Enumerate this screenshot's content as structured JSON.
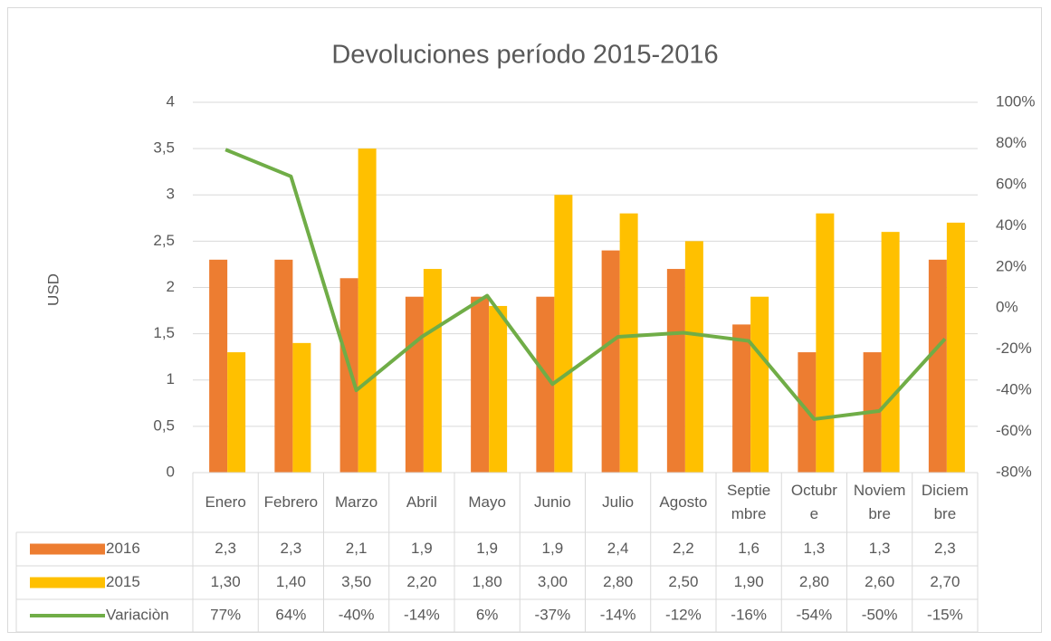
{
  "chart_data": {
    "type": "bar",
    "title": "Devoluciones período 2015-2016",
    "y_label": "USD",
    "categories": [
      "Enero",
      "Febrero",
      "Marzo",
      "Abril",
      "Mayo",
      "Junio",
      "Julio",
      "Agosto",
      "Septiembre",
      "Octubre",
      "Noviembre",
      "Diciembre"
    ],
    "series": [
      {
        "name": "2016",
        "color": "#ed7d31",
        "type": "bar",
        "values": [
          2.3,
          2.3,
          2.1,
          1.9,
          1.9,
          1.9,
          2.4,
          2.2,
          1.6,
          1.3,
          1.3,
          2.3
        ],
        "value_labels": [
          "2,3",
          "2,3",
          "2,1",
          "1,9",
          "1,9",
          "1,9",
          "2,4",
          "2,2",
          "1,6",
          "1,3",
          "1,3",
          "2,3"
        ]
      },
      {
        "name": "2015",
        "color": "#ffc000",
        "type": "bar",
        "values": [
          1.3,
          1.4,
          3.5,
          2.2,
          1.8,
          3.0,
          2.8,
          2.5,
          1.9,
          2.8,
          2.6,
          2.7
        ],
        "value_labels": [
          "1,30",
          "1,40",
          "3,50",
          "2,20",
          "1,80",
          "3,00",
          "2,80",
          "2,50",
          "1,90",
          "2,80",
          "2,60",
          "2,70"
        ]
      },
      {
        "name": "Variaciòn",
        "color": "#70ad47",
        "type": "line",
        "axis": "y2",
        "values": [
          77,
          64,
          -40,
          -14,
          6,
          -37,
          -14,
          -12,
          -16,
          -54,
          -50,
          -15
        ],
        "value_labels": [
          "77%",
          "64%",
          "-40%",
          "-14%",
          "6%",
          "-37%",
          "-14%",
          "-12%",
          "-16%",
          "-54%",
          "-50%",
          "-15%"
        ]
      }
    ],
    "ylim": [
      0,
      4
    ],
    "yticks": [
      0,
      {
        "value": 0.5,
        "label": "0,5"
      },
      1,
      {
        "value": 1.5,
        "label": "1,5"
      },
      2,
      {
        "value": 2.5,
        "label": "2,5"
      },
      3,
      {
        "value": 3.5,
        "label": "3,5"
      },
      4
    ],
    "y2lim": [
      -80,
      100
    ],
    "y2ticks": [
      {
        "value": -80,
        "label": "-80%"
      },
      {
        "value": -60,
        "label": "-60%"
      },
      {
        "value": -40,
        "label": "-40%"
      },
      {
        "value": -20,
        "label": "-20%"
      },
      {
        "value": 0,
        "label": "0%"
      },
      {
        "value": 20,
        "label": "20%"
      },
      {
        "value": 40,
        "label": "40%"
      },
      {
        "value": 60,
        "label": "60%"
      },
      {
        "value": 80,
        "label": "80%"
      },
      {
        "value": 100,
        "label": "100%"
      }
    ],
    "grid": true
  }
}
